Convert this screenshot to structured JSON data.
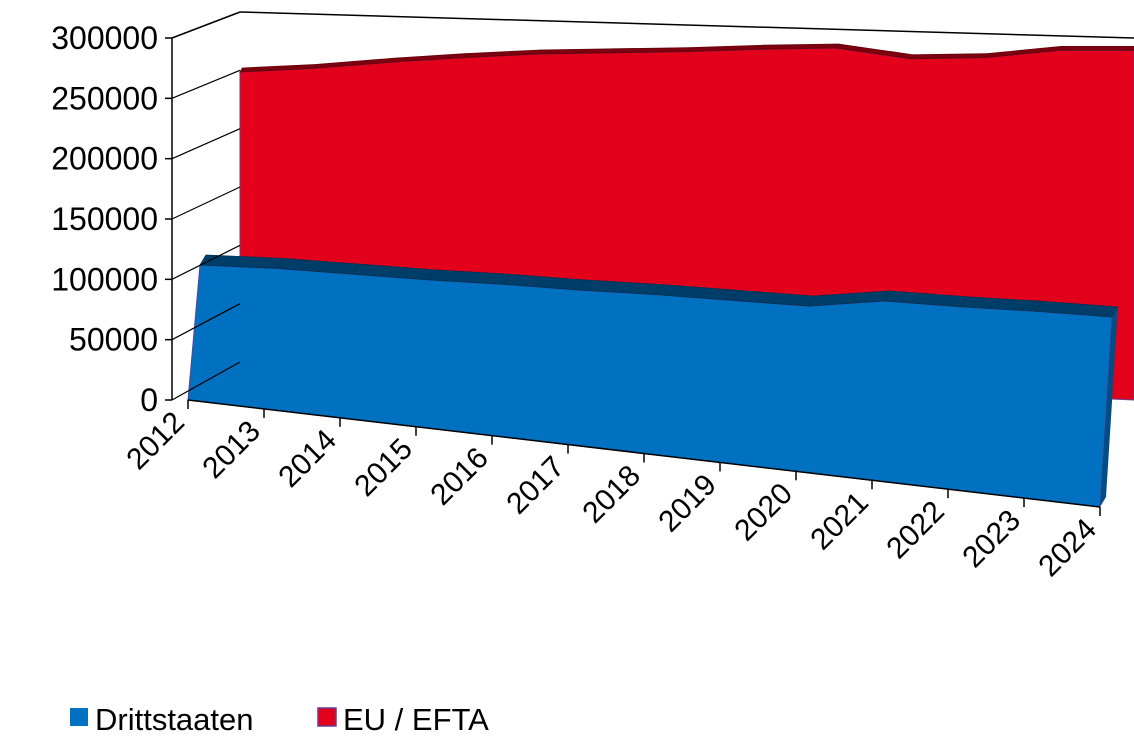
{
  "chart_data": {
    "type": "area",
    "style": "3d",
    "title": "",
    "xlabel": "",
    "ylabel": "",
    "categories": [
      "2012",
      "2013",
      "2014",
      "2015",
      "2016",
      "2017",
      "2018",
      "2019",
      "2020",
      "2021",
      "2022",
      "2023",
      "2024"
    ],
    "ylim": [
      0,
      300000
    ],
    "yticks": [
      0,
      50000,
      100000,
      150000,
      200000,
      250000,
      300000
    ],
    "ytick_labels": [
      "0",
      "50000",
      "100000",
      "150000",
      "200000",
      "250000",
      "300000"
    ],
    "grid": false,
    "legend_position": "bottom-left",
    "series": [
      {
        "name": "Drittstaaten",
        "color": "#0070c0",
        "values": [
          122000,
          122000,
          120000,
          118000,
          117000,
          115000,
          114000,
          112000,
          110000,
          117000,
          115000,
          114000,
          112000
        ]
      },
      {
        "name": "EU / EFTA",
        "color": "#e2001a",
        "values": [
          244000,
          247000,
          252000,
          256000,
          259000,
          260000,
          261000,
          263000,
          264000,
          255000,
          256000,
          262000,
          262000
        ]
      }
    ]
  }
}
